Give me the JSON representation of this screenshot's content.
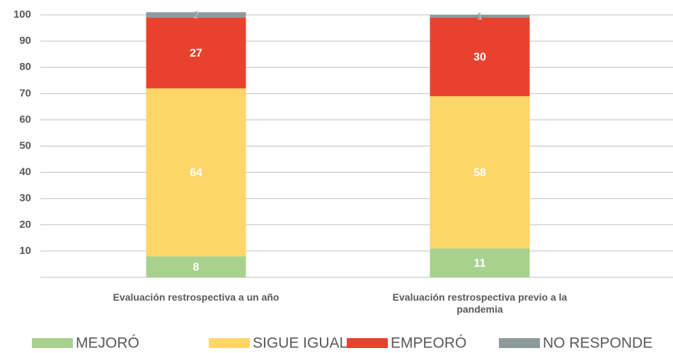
{
  "chart_data": {
    "type": "stacked_bar",
    "categories": [
      "Evaluación restrospectiva a un año",
      "Evaluación restrospectiva previo a la pandemia"
    ],
    "series": [
      {
        "name": "MEJORÓ",
        "color": "#a9d18e",
        "values": [
          8,
          11
        ]
      },
      {
        "name": "SIGUE IGUAL",
        "color": "#fdd66a",
        "values": [
          64,
          58
        ]
      },
      {
        "name": "EMPEORÓ",
        "color": "#e8422f",
        "values": [
          27,
          30
        ]
      },
      {
        "name": "NO RESPONDE",
        "color": "#8e9a9b",
        "values": [
          2,
          1
        ]
      }
    ],
    "ylim": [
      0,
      100
    ],
    "yticks": [
      10,
      20,
      30,
      40,
      50,
      60,
      70,
      80,
      90,
      100
    ],
    "grid": true
  }
}
